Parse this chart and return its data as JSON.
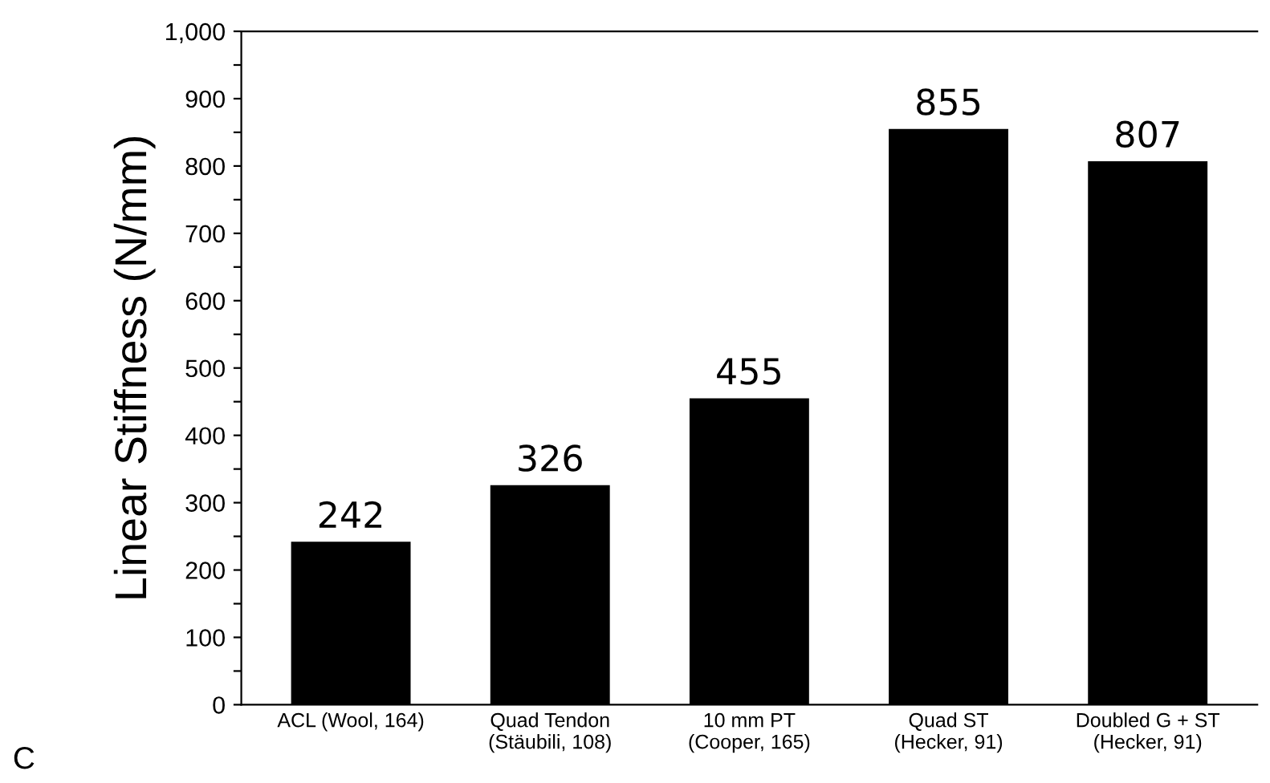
{
  "chart_data": {
    "type": "bar",
    "ylabel": "Linear Stiffness (N/mm)",
    "categories": [
      "ACL (Wool, 164)",
      "Quad Tendon\n(Stäubili, 108)",
      "10 mm PT\n(Cooper, 165)",
      "Quad ST\n(Hecker, 91)",
      "Doubled G + ST\n(Hecker, 91)"
    ],
    "values": [
      242,
      326,
      455,
      855,
      807
    ],
    "color": "#000000",
    "data_labels": true,
    "ylim": [
      0,
      1000
    ],
    "yticks": [
      0,
      {
        "value": 50,
        "label": null
      },
      100,
      {
        "value": 150,
        "label": null
      },
      200,
      {
        "value": 250,
        "label": null
      },
      300,
      {
        "value": 350,
        "label": null
      },
      400,
      {
        "value": 450,
        "label": null
      },
      500,
      {
        "value": 550,
        "label": null
      },
      600,
      {
        "value": 650,
        "label": null
      },
      700,
      {
        "value": 750,
        "label": null
      },
      800,
      {
        "value": 850,
        "label": null
      },
      900,
      {
        "value": 950,
        "label": null
      },
      {
        "value": 1000,
        "label": "1,000"
      }
    ],
    "grid": false,
    "annotations": [
      "C"
    ]
  }
}
